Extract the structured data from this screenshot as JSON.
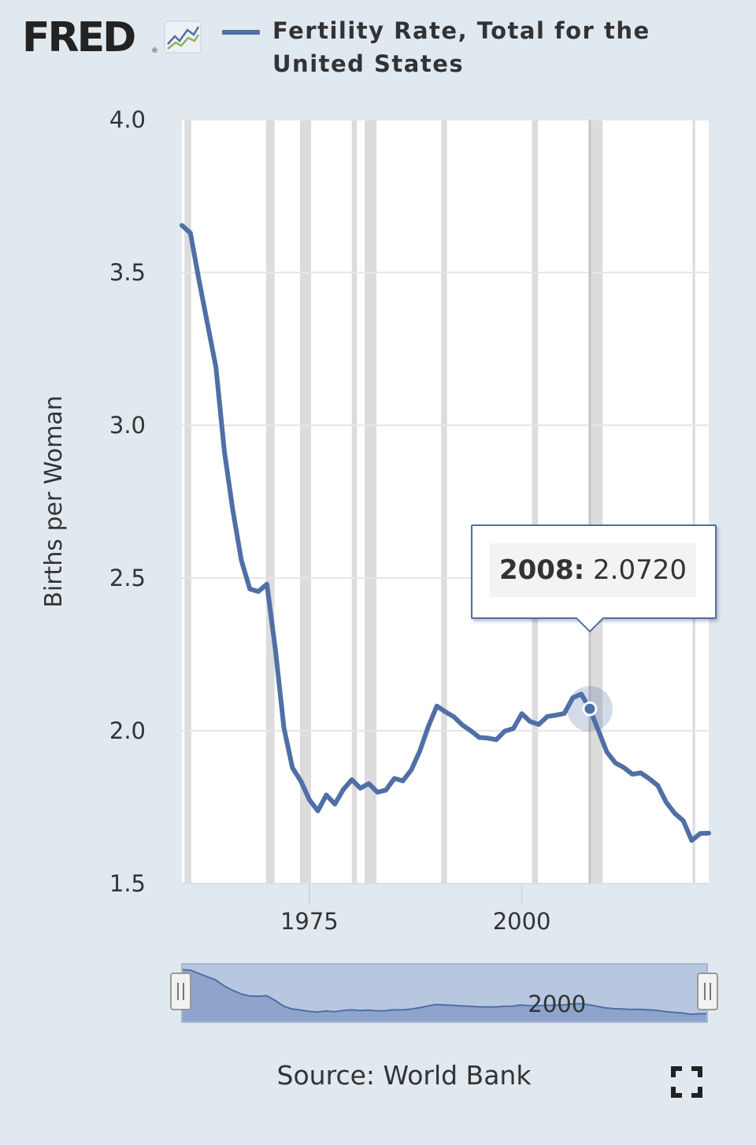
{
  "header": {
    "logo_text": "FRED",
    "logo_registered": "®",
    "logo_icon": "line-chart-icon",
    "legend_label": "Fertility Rate, Total for the United States"
  },
  "colors": {
    "series": "#4f6fa6",
    "recession": "#dcdcdc",
    "page_background": "#e1e9f0",
    "plot_background": "#ffffff"
  },
  "tooltip": {
    "year": "2008:",
    "value": "2.0720"
  },
  "navigator": {
    "label": "2000"
  },
  "source": "Source: World Bank",
  "fullscreen_icon": "fullscreen-icon",
  "chart_data": {
    "type": "line",
    "title": "Fertility Rate, Total for the United States",
    "ylabel": "Births per Woman",
    "xlabel": "",
    "ylim": [
      1.5,
      4.0
    ],
    "xlim": [
      1960,
      2022
    ],
    "y_ticks": [
      "1.5",
      "2.0",
      "2.5",
      "3.0",
      "3.5",
      "4.0"
    ],
    "x_ticks": [
      "1975",
      "2000"
    ],
    "grid": true,
    "recessions": [
      [
        1960.3,
        1961.1
      ],
      [
        1969.9,
        1970.9
      ],
      [
        1973.9,
        1975.2
      ],
      [
        1980.0,
        1980.6
      ],
      [
        1981.5,
        1982.9
      ],
      [
        1990.5,
        1991.2
      ],
      [
        2001.2,
        2001.9
      ],
      [
        2007.9,
        2009.5
      ],
      [
        2020.1,
        2020.4
      ]
    ],
    "series": [
      {
        "name": "Fertility Rate, Total for the United States",
        "x": [
          1960,
          1961,
          1962,
          1963,
          1964,
          1965,
          1966,
          1967,
          1968,
          1969,
          1970,
          1971,
          1972,
          1973,
          1974,
          1975,
          1976,
          1977,
          1978,
          1979,
          1980,
          1981,
          1982,
          1983,
          1984,
          1985,
          1986,
          1987,
          1988,
          1989,
          1990,
          1991,
          1992,
          1993,
          1994,
          1995,
          1996,
          1997,
          1998,
          1999,
          2000,
          2001,
          2002,
          2003,
          2004,
          2005,
          2006,
          2007,
          2008,
          2009,
          2010,
          2011,
          2012,
          2013,
          2014,
          2015,
          2016,
          2017,
          2018,
          2019,
          2020,
          2021,
          2022
        ],
        "values": [
          3.654,
          3.629,
          3.476,
          3.333,
          3.19,
          2.913,
          2.721,
          2.558,
          2.464,
          2.456,
          2.48,
          2.266,
          2.01,
          1.879,
          1.835,
          1.774,
          1.738,
          1.79,
          1.76,
          1.808,
          1.84,
          1.812,
          1.827,
          1.799,
          1.806,
          1.844,
          1.836,
          1.872,
          1.934,
          2.014,
          2.081,
          2.062,
          2.046,
          2.019,
          2.0,
          1.978,
          1.976,
          1.971,
          1.999,
          2.007,
          2.056,
          2.03,
          2.021,
          2.047,
          2.051,
          2.057,
          2.108,
          2.12,
          2.072,
          2.002,
          1.931,
          1.895,
          1.88,
          1.858,
          1.862,
          1.843,
          1.821,
          1.766,
          1.73,
          1.706,
          1.641,
          1.664,
          1.665
        ]
      }
    ],
    "highlight": {
      "x": 2008,
      "y": 2.072
    }
  }
}
